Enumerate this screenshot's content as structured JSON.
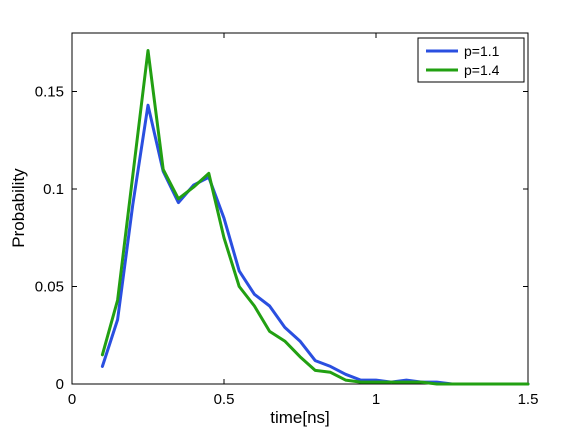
{
  "chart_data": {
    "type": "line",
    "xlabel": "time[ns]",
    "ylabel": "Probability",
    "xlim": [
      0,
      1.5
    ],
    "ylim": [
      0,
      0.18
    ],
    "xticks": [
      0,
      0.5,
      1,
      1.5
    ],
    "xtick_labels": [
      "0",
      "0.5",
      "1",
      "1.5"
    ],
    "yticks": [
      0,
      0.05,
      0.1,
      0.15
    ],
    "ytick_labels": [
      "0",
      "0.05",
      "0.1",
      "0.15"
    ],
    "grid": false,
    "legend_position": "top-right",
    "x": [
      0.1,
      0.15,
      0.2,
      0.25,
      0.3,
      0.35,
      0.4,
      0.45,
      0.5,
      0.55,
      0.6,
      0.65,
      0.7,
      0.75,
      0.8,
      0.85,
      0.9,
      0.95,
      1.0,
      1.05,
      1.1,
      1.15,
      1.2,
      1.25,
      1.3,
      1.35,
      1.4,
      1.45,
      1.5
    ],
    "series": [
      {
        "name": "p=1.1",
        "color": "#2a4fe0",
        "values": [
          0.009,
          0.033,
          0.092,
          0.143,
          0.109,
          0.093,
          0.102,
          0.106,
          0.085,
          0.058,
          0.046,
          0.04,
          0.029,
          0.022,
          0.012,
          0.009,
          0.005,
          0.002,
          0.002,
          0.001,
          0.002,
          0.001,
          0.001,
          0.0,
          0.0,
          0.0,
          0.0,
          0.0,
          0.0
        ]
      },
      {
        "name": "p=1.4",
        "color": "#22a012",
        "values": [
          0.015,
          0.043,
          0.107,
          0.171,
          0.11,
          0.095,
          0.101,
          0.108,
          0.075,
          0.05,
          0.04,
          0.027,
          0.022,
          0.014,
          0.007,
          0.006,
          0.002,
          0.001,
          0.001,
          0.001,
          0.001,
          0.001,
          0.0,
          0.0,
          0.0,
          0.0,
          0.0,
          0.0,
          0.0
        ]
      }
    ]
  }
}
